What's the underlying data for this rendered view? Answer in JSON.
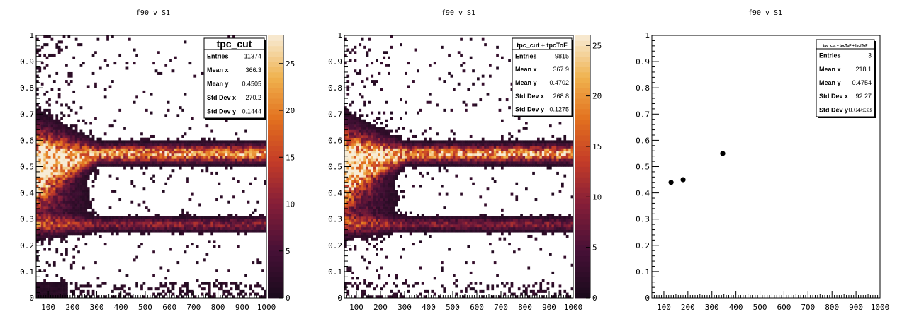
{
  "chart_data": [
    {
      "type": "heatmap",
      "title": "f90 v S1",
      "xlim": [
        50,
        1000
      ],
      "ylim": [
        0,
        1
      ],
      "x_ticks": [
        100,
        200,
        300,
        400,
        500,
        600,
        700,
        800,
        900,
        1000
      ],
      "y_ticks": [
        0,
        0.1,
        0.2,
        0.3,
        0.4,
        0.5,
        0.6,
        0.7,
        0.8,
        0.9,
        1
      ],
      "x_tick_labels": [
        "100",
        "200",
        "300",
        "400",
        "500",
        "600",
        "700",
        "800",
        "900",
        "1000"
      ],
      "y_tick_labels": [
        "0",
        "0.1",
        "0.2",
        "0.3",
        "0.4",
        "0.5",
        "0.6",
        "0.7",
        "0.8",
        "0.9",
        "1"
      ],
      "colorbar": {
        "range": [
          0,
          28
        ],
        "ticks": [
          0,
          5,
          10,
          15,
          20,
          25
        ],
        "tick_labels": [
          "0",
          "5",
          "10",
          "15",
          "20",
          "25"
        ]
      },
      "bands": [
        {
          "f90_center": 0.55,
          "f90_width": 0.02,
          "start_S1": 50,
          "end_S1": 1000,
          "peak_count": 25
        },
        {
          "f90_center": 0.28,
          "f90_width": 0.015,
          "start_S1": 50,
          "end_S1": 1000,
          "peak_count": 14
        }
      ],
      "stats": {
        "name": "tpc_cut",
        "rows": [
          {
            "label": "Entries",
            "value": "11374"
          },
          {
            "label": "Mean x",
            "value": "366.3"
          },
          {
            "label": "Mean y",
            "value": "0.4505"
          },
          {
            "label": "Std Dev x",
            "value": "270.2"
          },
          {
            "label": "Std Dev y",
            "value": "0.1444"
          }
        ]
      }
    },
    {
      "type": "heatmap",
      "title": "f90 v S1",
      "xlim": [
        50,
        1000
      ],
      "ylim": [
        0,
        1
      ],
      "x_ticks": [
        100,
        200,
        300,
        400,
        500,
        600,
        700,
        800,
        900,
        1000
      ],
      "y_ticks": [
        0,
        0.1,
        0.2,
        0.3,
        0.4,
        0.5,
        0.6,
        0.7,
        0.8,
        0.9,
        1
      ],
      "x_tick_labels": [
        "100",
        "200",
        "300",
        "400",
        "500",
        "600",
        "700",
        "800",
        "900",
        "1000"
      ],
      "y_tick_labels": [
        "0",
        "0.1",
        "0.2",
        "0.3",
        "0.4",
        "0.5",
        "0.6",
        "0.7",
        "0.8",
        "0.9",
        "1"
      ],
      "colorbar": {
        "range": [
          0,
          26
        ],
        "ticks": [
          0,
          5,
          10,
          15,
          20,
          25
        ],
        "tick_labels": [
          "0",
          "5",
          "10",
          "15",
          "20",
          "25"
        ]
      },
      "bands": [
        {
          "f90_center": 0.55,
          "f90_width": 0.02,
          "start_S1": 50,
          "end_S1": 1000,
          "peak_count": 23
        },
        {
          "f90_center": 0.28,
          "f90_width": 0.015,
          "start_S1": 50,
          "end_S1": 1000,
          "peak_count": 12
        }
      ],
      "stats": {
        "name": "tpc_cut + tpcToF",
        "rows": [
          {
            "label": "Entries",
            "value": "9815"
          },
          {
            "label": "Mean x",
            "value": "367.9"
          },
          {
            "label": "Mean y",
            "value": "0.4702"
          },
          {
            "label": "Std Dev x",
            "value": "268.8"
          },
          {
            "label": "Std Dev y",
            "value": "0.1275"
          }
        ]
      }
    },
    {
      "type": "scatter",
      "title": "f90 v S1",
      "xlim": [
        50,
        1000
      ],
      "ylim": [
        0,
        1
      ],
      "x_ticks": [
        100,
        200,
        300,
        400,
        500,
        600,
        700,
        800,
        900,
        1000
      ],
      "y_ticks": [
        0,
        0.1,
        0.2,
        0.3,
        0.4,
        0.5,
        0.6,
        0.7,
        0.8,
        0.9,
        1
      ],
      "x_tick_labels": [
        "100",
        "200",
        "300",
        "400",
        "500",
        "600",
        "700",
        "800",
        "900",
        "1000"
      ],
      "y_tick_labels": [
        "0",
        "0.1",
        "0.2",
        "0.3",
        "0.4",
        "0.5",
        "0.6",
        "0.7",
        "0.8",
        "0.9",
        "1"
      ],
      "points": [
        {
          "x": 130,
          "y": 0.44
        },
        {
          "x": 180,
          "y": 0.45
        },
        {
          "x": 345,
          "y": 0.55
        }
      ],
      "stats": {
        "name": "tpc_cut + tpcToF + lsciToF",
        "rows": [
          {
            "label": "Entries",
            "value": "3"
          },
          {
            "label": "Mean x",
            "value": "218.1"
          },
          {
            "label": "Mean y",
            "value": "0.4754"
          },
          {
            "label": "Std Dev x",
            "value": "92.27"
          },
          {
            "label": "Std Dev y",
            "value": "0.04633"
          }
        ]
      }
    }
  ]
}
